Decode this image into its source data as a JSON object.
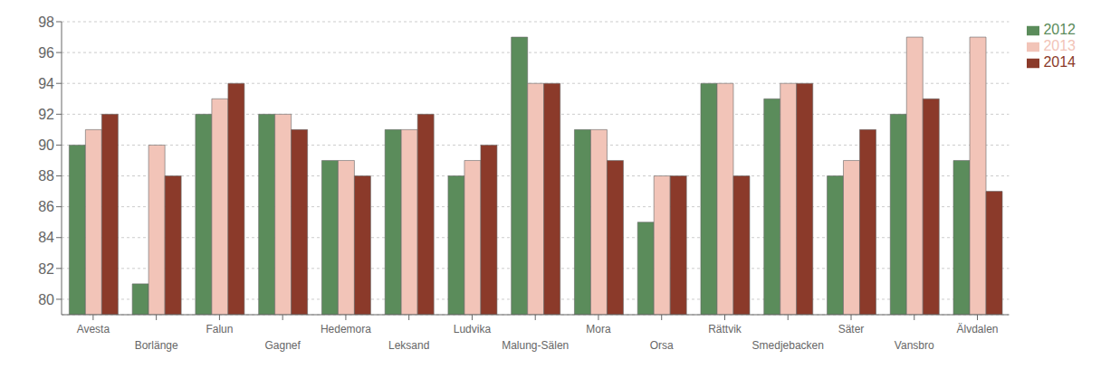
{
  "chart_data": {
    "type": "bar",
    "categories": [
      "Avesta",
      "Borlänge",
      "Falun",
      "Gagnef",
      "Hedemora",
      "Leksand",
      "Ludvika",
      "Malung-Sälen",
      "Mora",
      "Orsa",
      "Rättvik",
      "Smedjebacken",
      "Säter",
      "Vansbro",
      "Älvdalen"
    ],
    "series": [
      {
        "name": "2012",
        "color": "#5b8c5b",
        "values": [
          90,
          81,
          92,
          92,
          89,
          91,
          88,
          97,
          91,
          85,
          94,
          93,
          88,
          92,
          89
        ]
      },
      {
        "name": "2013",
        "color": "#f2c4b8",
        "values": [
          91,
          90,
          93,
          92,
          89,
          91,
          89,
          94,
          91,
          88,
          94,
          94,
          89,
          97,
          97
        ]
      },
      {
        "name": "2014",
        "color": "#8b3a2a",
        "values": [
          92,
          88,
          94,
          91,
          88,
          92,
          90,
          94,
          89,
          88,
          88,
          94,
          91,
          93,
          87
        ]
      }
    ],
    "ylim": [
      79,
      98
    ],
    "yticks": [
      80,
      82,
      84,
      86,
      88,
      90,
      92,
      94,
      96,
      98
    ],
    "grid": true,
    "legend": "upper right"
  }
}
